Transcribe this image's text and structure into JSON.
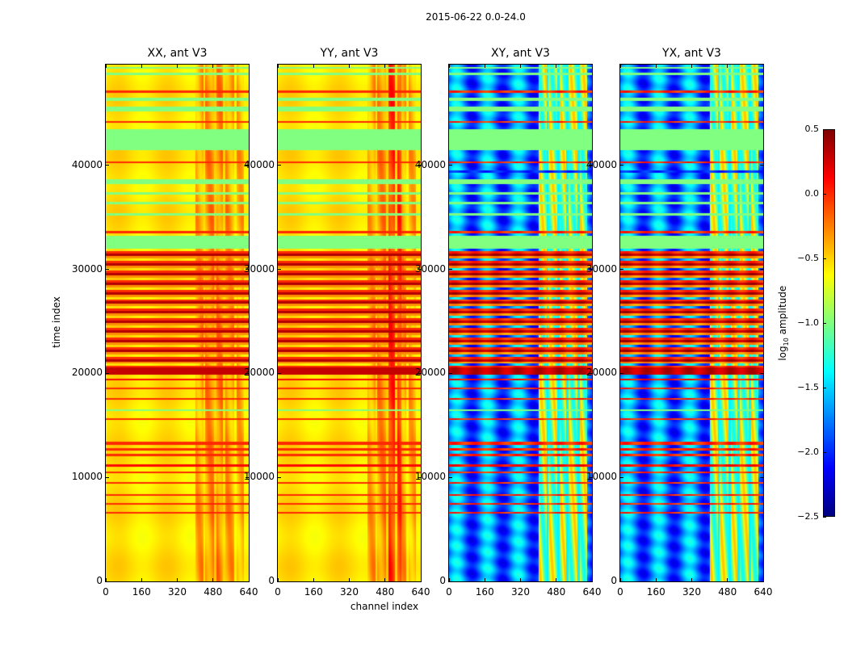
{
  "chart_data": {
    "type": "heatmap",
    "title": "2015-06-22 0.0-24.0",
    "xlabel": "channel index",
    "ylabel": "time index",
    "xlim": [
      0,
      640
    ],
    "ylim": [
      0,
      49700
    ],
    "xticks": [
      0,
      160,
      320,
      480,
      640
    ],
    "yticks": [
      0,
      10000,
      20000,
      30000,
      40000
    ],
    "panels": [
      {
        "title": "XX, ant V3",
        "kind": "parallel"
      },
      {
        "title": "YY, ant V3",
        "kind": "parallel"
      },
      {
        "title": "XY, ant V3",
        "kind": "cross"
      },
      {
        "title": "YX, ant V3",
        "kind": "cross"
      }
    ],
    "colorbar": {
      "label_main": "log",
      "label_sub": "10",
      "label_rest": " amplitude",
      "range": [
        -2.5,
        0.5
      ],
      "ticks": [
        "0.5",
        "0.0",
        "−0.5",
        "−1.0",
        "−1.5",
        "−2.0",
        "−2.5"
      ],
      "tick_values": [
        0.5,
        0.0,
        -0.5,
        -1.0,
        -1.5,
        -2.0,
        -2.5
      ],
      "colormap": "jet"
    },
    "rfi_channels": [
      [
        400,
        620
      ]
    ],
    "flagged_rows": [
      {
        "t": [
          6500,
          6650
        ],
        "level": 0.0
      },
      {
        "t": [
          7400,
          7550
        ],
        "level": 0.0
      },
      {
        "t": [
          8200,
          8350
        ],
        "level": 0.0
      },
      {
        "t": [
          9400,
          9550
        ],
        "level": 0.0
      },
      {
        "t": [
          10400,
          10550
        ],
        "level": 0.0
      },
      {
        "t": [
          11000,
          11250
        ],
        "level": 0.1
      },
      {
        "t": [
          12000,
          12300
        ],
        "level": 0.0
      },
      {
        "t": [
          12600,
          12800
        ],
        "level": 0.0
      },
      {
        "t": [
          13100,
          13400
        ],
        "level": 0.0
      },
      {
        "t": [
          15500,
          15650
        ],
        "level": 0.0
      },
      {
        "t": [
          16400,
          16550
        ],
        "level": -1.0
      },
      {
        "t": [
          17500,
          17650
        ],
        "level": 0.0
      },
      {
        "t": [
          18500,
          18650
        ],
        "level": 0.0
      },
      {
        "t": [
          19300,
          19500
        ],
        "level": 0.1
      },
      {
        "t": [
          19900,
          20600
        ],
        "level": 0.3
      },
      {
        "t": [
          20600,
          32000
        ],
        "level": "striped"
      },
      {
        "t": [
          32000,
          33200
        ],
        "level": -1.0
      },
      {
        "t": [
          33500,
          33700
        ],
        "level": 0.0
      },
      {
        "t": [
          35200,
          35400
        ],
        "level": -1.0
      },
      {
        "t": [
          36300,
          36500
        ],
        "level": -1.0
      },
      {
        "t": [
          37200,
          37400
        ],
        "level": -1.0
      },
      {
        "t": [
          38200,
          38700
        ],
        "level": -1.0
      },
      {
        "t": [
          39300,
          39500
        ],
        "level": -2.0
      },
      {
        "t": [
          40200,
          40400
        ],
        "level": 0.0
      },
      {
        "t": [
          41500,
          43500
        ],
        "level": -1.0
      },
      {
        "t": [
          44100,
          44300
        ],
        "level": 0.0
      },
      {
        "t": [
          45200,
          45700
        ],
        "level": -1.0
      },
      {
        "t": [
          46200,
          46500
        ],
        "level": -1.0
      },
      {
        "t": [
          47000,
          47200
        ],
        "level": 0.0
      },
      {
        "t": [
          48700,
          48900
        ],
        "level": -1.0
      },
      {
        "t": [
          49300,
          49500
        ],
        "level": -1.0
      }
    ]
  }
}
